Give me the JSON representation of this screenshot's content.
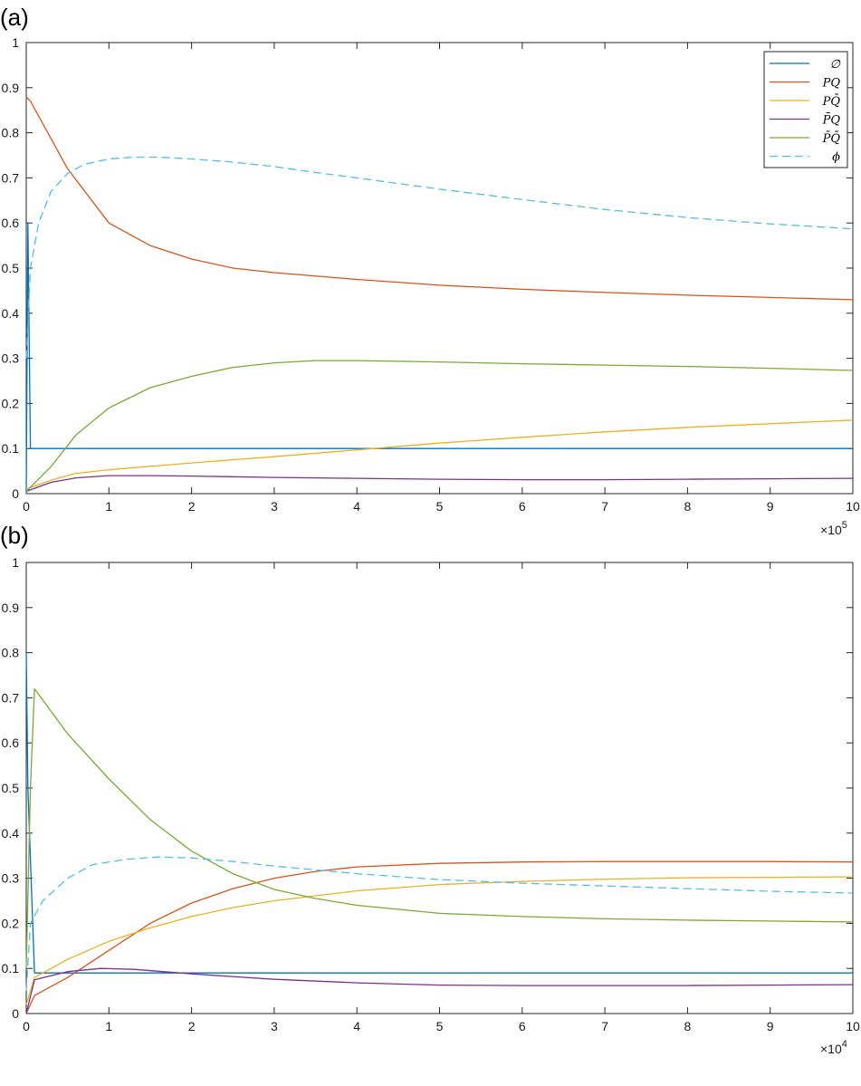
{
  "chart_data": [
    {
      "panel_label": "(a)",
      "type": "line",
      "xlim": [
        0,
        10
      ],
      "ylim": [
        0,
        1
      ],
      "x_ticks": [
        "0",
        "1",
        "2",
        "3",
        "4",
        "5",
        "6",
        "7",
        "8",
        "9",
        "10"
      ],
      "y_ticks": [
        "0",
        "0.1",
        "0.2",
        "0.3",
        "0.4",
        "0.5",
        "0.6",
        "0.7",
        "0.8",
        "0.9",
        "1"
      ],
      "x_multiplier": {
        "base": "×10",
        "exp": "5"
      },
      "legend": {
        "position": "top-right"
      },
      "series": [
        {
          "name": "∅",
          "color": "#0072bd",
          "dash": "solid",
          "x": [
            0,
            0.02,
            0.05,
            10
          ],
          "y": [
            0,
            0.6,
            0.1,
            0.1
          ]
        },
        {
          "name": "PQ",
          "color": "#d95319",
          "dash": "solid",
          "x": [
            0,
            0.05,
            0.5,
            1,
            1.5,
            2,
            2.5,
            3,
            4,
            5,
            6,
            7,
            8,
            9,
            10
          ],
          "y": [
            0.88,
            0.87,
            0.72,
            0.6,
            0.55,
            0.52,
            0.5,
            0.49,
            0.475,
            0.462,
            0.453,
            0.446,
            0.44,
            0.435,
            0.43
          ]
        },
        {
          "name": "PQ̄",
          "color": "#edb120",
          "dash": "solid",
          "x": [
            0,
            0.3,
            0.6,
            1,
            2,
            3,
            4,
            5,
            6,
            7,
            8,
            9,
            10
          ],
          "y": [
            0.01,
            0.03,
            0.045,
            0.053,
            0.068,
            0.082,
            0.097,
            0.112,
            0.125,
            0.137,
            0.147,
            0.155,
            0.163
          ]
        },
        {
          "name": "P̄Q",
          "color": "#7e2f8e",
          "dash": "solid",
          "x": [
            0,
            0.3,
            0.6,
            1,
            1.5,
            2,
            3,
            4,
            5,
            6,
            7,
            8,
            9,
            10
          ],
          "y": [
            0.005,
            0.025,
            0.035,
            0.04,
            0.04,
            0.039,
            0.036,
            0.034,
            0.032,
            0.031,
            0.031,
            0.032,
            0.033,
            0.034
          ]
        },
        {
          "name": "P̄Q̄",
          "color": "#77ac30",
          "dash": "solid",
          "x": [
            0,
            0.3,
            0.6,
            1,
            1.5,
            2,
            2.5,
            3,
            3.5,
            4,
            5,
            6,
            7,
            8,
            9,
            10
          ],
          "y": [
            0.005,
            0.06,
            0.13,
            0.19,
            0.235,
            0.26,
            0.28,
            0.29,
            0.295,
            0.295,
            0.292,
            0.288,
            0.285,
            0.282,
            0.278,
            0.273
          ]
        },
        {
          "name": "ϕ",
          "color": "#4dbeee",
          "dash": "dashed",
          "x": [
            0,
            0.05,
            0.15,
            0.3,
            0.5,
            0.7,
            1,
            1.3,
            1.6,
            2,
            2.5,
            3,
            3.5,
            4,
            5,
            6,
            7,
            8,
            9,
            10
          ],
          "y": [
            0.3,
            0.5,
            0.6,
            0.67,
            0.71,
            0.73,
            0.742,
            0.746,
            0.746,
            0.742,
            0.735,
            0.725,
            0.712,
            0.7,
            0.675,
            0.652,
            0.63,
            0.612,
            0.598,
            0.587
          ]
        }
      ]
    },
    {
      "panel_label": "(b)",
      "type": "line",
      "xlim": [
        0,
        10
      ],
      "ylim": [
        0,
        1
      ],
      "x_ticks": [
        "0",
        "1",
        "2",
        "3",
        "4",
        "5",
        "6",
        "7",
        "8",
        "9",
        "10"
      ],
      "y_ticks": [
        "0",
        "0.1",
        "0.2",
        "0.3",
        "0.4",
        "0.5",
        "0.6",
        "0.7",
        "0.8",
        "0.9",
        "1"
      ],
      "x_multiplier": {
        "base": "×10",
        "exp": "4"
      },
      "series": [
        {
          "name": "∅",
          "color": "#0072bd",
          "dash": "solid",
          "x": [
            0,
            0.02,
            0.1,
            10
          ],
          "y": [
            0.8,
            0.5,
            0.09,
            0.09
          ]
        },
        {
          "name": "PQ",
          "color": "#d95319",
          "dash": "solid",
          "x": [
            0,
            0.1,
            0.5,
            1,
            1.5,
            2,
            2.5,
            3,
            3.5,
            4,
            5,
            6,
            7,
            8,
            9,
            10
          ],
          "y": [
            0,
            0.04,
            0.08,
            0.14,
            0.2,
            0.245,
            0.277,
            0.3,
            0.315,
            0.325,
            0.333,
            0.336,
            0.337,
            0.337,
            0.337,
            0.336
          ]
        },
        {
          "name": "PQ̄",
          "color": "#edb120",
          "dash": "solid",
          "x": [
            0,
            0.1,
            0.5,
            1,
            1.5,
            2,
            2.5,
            3,
            4,
            5,
            6,
            7,
            8,
            9,
            10
          ],
          "y": [
            0.02,
            0.08,
            0.12,
            0.16,
            0.19,
            0.215,
            0.235,
            0.25,
            0.272,
            0.286,
            0.293,
            0.298,
            0.301,
            0.302,
            0.303
          ]
        },
        {
          "name": "P̄Q",
          "color": "#7e2f8e",
          "dash": "solid",
          "x": [
            0,
            0.1,
            0.5,
            0.9,
            1.3,
            2,
            3,
            4,
            5,
            6,
            7,
            8,
            9,
            10
          ],
          "y": [
            0,
            0.075,
            0.093,
            0.1,
            0.098,
            0.088,
            0.076,
            0.068,
            0.063,
            0.062,
            0.062,
            0.062,
            0.063,
            0.064
          ]
        },
        {
          "name": "P̄Q̄",
          "color": "#77ac30",
          "dash": "solid",
          "x": [
            0,
            0.05,
            0.1,
            0.5,
            1,
            1.5,
            2,
            2.5,
            3,
            3.5,
            4,
            5,
            6,
            7,
            8,
            9,
            10
          ],
          "y": [
            0.1,
            0.5,
            0.72,
            0.62,
            0.52,
            0.43,
            0.36,
            0.31,
            0.275,
            0.255,
            0.24,
            0.222,
            0.215,
            0.21,
            0.207,
            0.205,
            0.203
          ]
        },
        {
          "name": "ϕ",
          "color": "#4dbeee",
          "dash": "dashed",
          "x": [
            0,
            0.05,
            0.2,
            0.5,
            0.8,
            1.2,
            1.6,
            2,
            2.5,
            3,
            4,
            5,
            6,
            7,
            8,
            9,
            10
          ],
          "y": [
            0.05,
            0.2,
            0.25,
            0.3,
            0.33,
            0.342,
            0.347,
            0.345,
            0.337,
            0.327,
            0.31,
            0.297,
            0.289,
            0.283,
            0.277,
            0.271,
            0.267
          ]
        }
      ]
    }
  ]
}
